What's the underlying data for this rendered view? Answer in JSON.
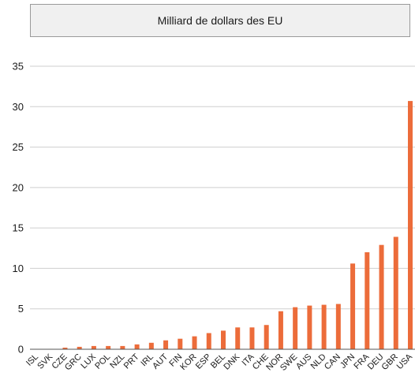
{
  "chart_data": {
    "type": "bar",
    "title": "Milliard de dollars des EU",
    "xlabel": "",
    "ylabel": "",
    "ylim": [
      0,
      35
    ],
    "yticks": [
      0,
      5,
      10,
      15,
      20,
      25,
      30,
      35
    ],
    "grid": true,
    "bar_color": "#ec6c3a",
    "categories": [
      "ISL",
      "SVK",
      "CZE",
      "GRC",
      "LUX",
      "POL",
      "NZL",
      "PRT",
      "IRL",
      "AUT",
      "FIN",
      "KOR",
      "ESP",
      "BEL",
      "DNK",
      "ITA",
      "CHE",
      "NOR",
      "SWE",
      "AUS",
      "NLD",
      "CAN",
      "JPN",
      "FRA",
      "DEU",
      "GBR",
      "USA"
    ],
    "values": [
      0.0,
      0.05,
      0.2,
      0.3,
      0.4,
      0.4,
      0.4,
      0.6,
      0.8,
      1.1,
      1.3,
      1.6,
      2.0,
      2.3,
      2.7,
      2.7,
      3.0,
      4.7,
      5.2,
      5.4,
      5.5,
      5.6,
      10.6,
      12.0,
      12.9,
      13.9,
      30.7
    ]
  }
}
